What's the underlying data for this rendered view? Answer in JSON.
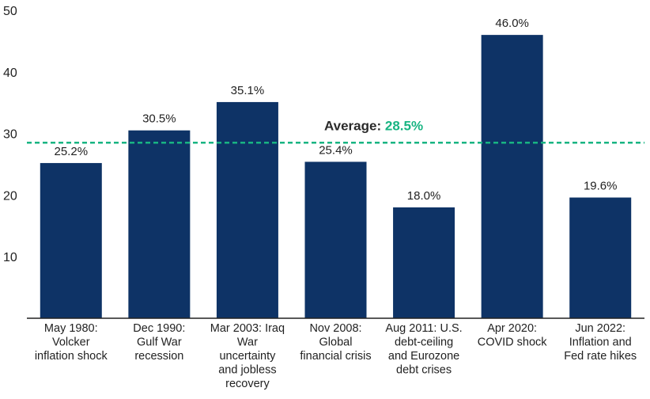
{
  "chart_data": {
    "type": "bar",
    "categories": [
      [
        "May 1980:",
        "Volcker",
        "inflation shock"
      ],
      [
        "Dec 1990:",
        "Gulf War",
        "recession"
      ],
      [
        "Mar 2003: Iraq",
        "War",
        "uncertainty",
        "and jobless",
        "recovery"
      ],
      [
        "Nov 2008:",
        "Global",
        "financial crisis"
      ],
      [
        "Aug 2011: U.S.",
        "debt-ceiling",
        "and Eurozone",
        "debt crises"
      ],
      [
        "Apr 2020:",
        "COVID shock"
      ],
      [
        "Jun 2022:",
        "Inflation and",
        "Fed rate hikes"
      ]
    ],
    "values": [
      25.2,
      30.5,
      35.1,
      25.4,
      18.0,
      46.0,
      19.6
    ],
    "value_labels": [
      "25.2%",
      "30.5%",
      "35.1%",
      "25.4%",
      "18.0%",
      "46.0%",
      "19.6%"
    ],
    "ylim": [
      0,
      50
    ],
    "yticks": [
      10,
      20,
      30,
      40,
      50
    ],
    "title": "",
    "xlabel": "",
    "ylabel": "",
    "grid": false,
    "reference_line": {
      "value": 28.5,
      "label_prefix": "Average: ",
      "label_value": "28.5%",
      "style": "dashed"
    }
  },
  "colors": {
    "bar": "#0e3366",
    "average_line": "#18b482",
    "average_label_text": "#2a2a2a",
    "average_label_value": "#18b482",
    "axis": "#222222",
    "text": "#222222"
  }
}
